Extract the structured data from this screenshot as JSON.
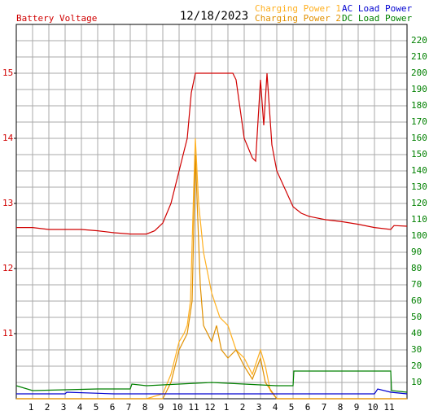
{
  "chart_data": {
    "type": "line",
    "title": "12/18/2023",
    "y_label": "Battery Voltage",
    "xlim": [
      0,
      24
    ],
    "xticks": [
      1,
      2,
      3,
      4,
      5,
      6,
      7,
      8,
      9,
      10,
      11,
      12,
      {
        "value": 13,
        "label": "1"
      },
      {
        "value": 14,
        "label": "2"
      },
      {
        "value": 15,
        "label": "3"
      },
      {
        "value": 16,
        "label": "4"
      },
      {
        "value": 17,
        "label": "5"
      },
      {
        "value": 18,
        "label": "6"
      },
      {
        "value": 19,
        "label": "7"
      },
      {
        "value": 20,
        "label": "8"
      },
      {
        "value": 21,
        "label": "9"
      },
      {
        "value": 22,
        "label": "10"
      },
      {
        "value": 23,
        "label": "11"
      }
    ],
    "ylim": [
      10,
      15.75
    ],
    "yticks": [
      11,
      12,
      13,
      14,
      15
    ],
    "y_color": "#d00000",
    "y2lim": [
      0,
      230
    ],
    "y2ticks": [
      10,
      20,
      30,
      40,
      50,
      60,
      70,
      80,
      90,
      100,
      110,
      120,
      130,
      140,
      150,
      160,
      170,
      180,
      190,
      200,
      210,
      220
    ],
    "y2_color": "#008000",
    "grid": true,
    "series": [
      {
        "name": "Battery Voltage",
        "color": "#d00000",
        "x": [
          0,
          1,
          2,
          3,
          4,
          5,
          6,
          7,
          8,
          8.5,
          9,
          9.5,
          10,
          10.5,
          10.75,
          11,
          11.5,
          12,
          13,
          13.3,
          13.5,
          14,
          14.5,
          14.7,
          15,
          15.2,
          15.4,
          15.7,
          16,
          17,
          17.5,
          18,
          19,
          20,
          21,
          22,
          23,
          23.2,
          24
        ],
        "values": [
          12.63,
          12.63,
          12.6,
          12.6,
          12.6,
          12.58,
          12.55,
          12.53,
          12.53,
          12.58,
          12.7,
          13.0,
          13.5,
          14.0,
          14.7,
          15.0,
          15.0,
          15.0,
          15.0,
          15.0,
          14.9,
          14.0,
          13.7,
          13.65,
          14.9,
          14.2,
          15.0,
          13.9,
          13.5,
          12.95,
          12.85,
          12.8,
          12.75,
          12.72,
          12.68,
          12.63,
          12.6,
          12.66,
          12.65
        ]
      },
      {
        "name": "Charging Power 1",
        "color": "#ffb020",
        "axis": "y2",
        "x": [
          0,
          8,
          9,
          9.5,
          10,
          10.3,
          10.5,
          10.7,
          10.9,
          11,
          11.2,
          11.5,
          12,
          12.5,
          13,
          13.5,
          14,
          14.5,
          15,
          15.3,
          15.6,
          16,
          24
        ],
        "values": [
          0,
          0,
          3,
          15,
          35,
          40,
          45,
          60,
          130,
          160,
          120,
          90,
          65,
          50,
          45,
          30,
          25,
          15,
          30,
          20,
          5,
          0,
          0
        ]
      },
      {
        "name": "Charging Power 2",
        "color": "#e09000",
        "axis": "y2",
        "x": [
          0,
          9,
          9.5,
          10,
          10.5,
          10.8,
          11,
          11.3,
          11.5,
          12,
          12.3,
          12.6,
          13,
          13.5,
          14,
          14.5,
          15,
          15.3,
          16,
          24
        ],
        "values": [
          0,
          0,
          10,
          30,
          40,
          60,
          150,
          70,
          45,
          35,
          45,
          30,
          25,
          30,
          20,
          12,
          25,
          10,
          0,
          0
        ]
      },
      {
        "name": "AC Load Power",
        "color": "#0000d0",
        "axis": "y2",
        "x": [
          0,
          3,
          3.1,
          6,
          10,
          14,
          18,
          22,
          22.2,
          23,
          24
        ],
        "values": [
          3,
          3,
          4,
          3,
          3,
          3,
          3,
          3,
          6,
          4,
          3
        ]
      },
      {
        "name": "DC Load Power",
        "color": "#008000",
        "axis": "y2",
        "x": [
          0,
          1,
          5,
          7,
          7.1,
          8,
          12,
          16,
          17,
          17.05,
          23,
          23.05,
          24
        ],
        "values": [
          8,
          5,
          6,
          6,
          9,
          8,
          10,
          8,
          8,
          17,
          17,
          5,
          4
        ]
      }
    ]
  }
}
